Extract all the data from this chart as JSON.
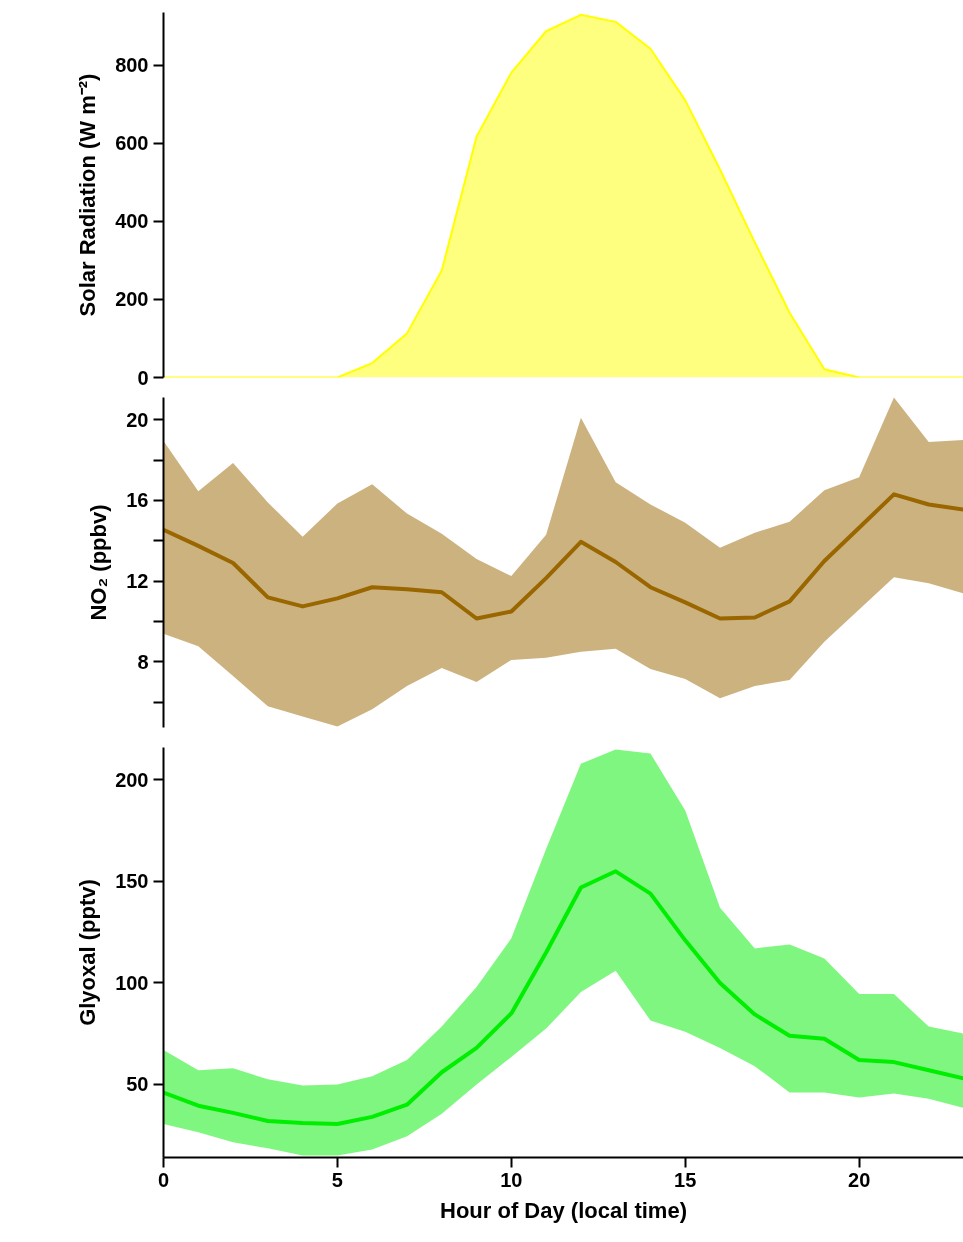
{
  "chart_data": [
    {
      "type": "area",
      "ylabel": "Solar Radiation (W m⁻²)",
      "x": [
        0,
        1,
        2,
        3,
        4,
        5,
        6,
        7,
        8,
        9,
        10,
        11,
        12,
        13,
        14,
        15,
        16,
        17,
        18,
        19,
        20,
        21,
        22,
        23
      ],
      "ylim": [
        0,
        935
      ],
      "yticks": [
        0,
        200,
        400,
        600,
        800
      ],
      "tick_labels": "y",
      "grid": false,
      "series": [
        {
          "color": "#ffff00",
          "values": [
            0,
            0,
            0,
            0,
            0,
            0,
            37,
            113,
            274,
            617,
            781,
            887,
            929,
            911,
            842,
            710,
            533,
            346,
            166,
            21,
            0,
            0,
            0,
            0
          ]
        }
      ]
    },
    {
      "type": "line",
      "ylabel": "NO₂ (ppbv)",
      "x": [
        0,
        1,
        2,
        3,
        4,
        5,
        6,
        7,
        8,
        9,
        10,
        11,
        12,
        13,
        14,
        15,
        16,
        17,
        18,
        19,
        20,
        21,
        22,
        23
      ],
      "ylim": [
        4.75,
        21.1
      ],
      "yticks": [
        {
          "value": 6,
          "label": null
        },
        8,
        {
          "value": 10,
          "label": null
        },
        12,
        {
          "value": 14,
          "label": null
        },
        16,
        {
          "value": 18,
          "label": null
        },
        20
      ],
      "tick_labels": "y",
      "grid": false,
      "series": [
        {
          "color": "#996600",
          "values": [
            14.55,
            13.75,
            12.9,
            11.2,
            10.75,
            11.15,
            11.7,
            11.6,
            11.45,
            10.15,
            10.5,
            12.15,
            13.95,
            12.95,
            11.7,
            10.95,
            10.15,
            10.2,
            11.0,
            13.0,
            14.65,
            16.3,
            15.8,
            15.55
          ],
          "lower": [
            9.4,
            8.78,
            7.3,
            5.8,
            5.3,
            4.8,
            5.65,
            6.8,
            7.7,
            7.0,
            8.1,
            8.2,
            8.5,
            8.65,
            7.65,
            7.15,
            6.2,
            6.8,
            7.1,
            9.0,
            10.6,
            12.2,
            11.9,
            11.4
          ],
          "upper": [
            18.95,
            16.45,
            17.85,
            15.9,
            14.2,
            15.85,
            16.8,
            15.35,
            14.35,
            13.1,
            12.25,
            14.3,
            20.1,
            16.9,
            15.8,
            14.9,
            13.65,
            14.4,
            14.95,
            16.5,
            17.15,
            21.1,
            18.9,
            19.0
          ]
        }
      ]
    },
    {
      "type": "line",
      "ylabel": "Glyoxal (pptv)",
      "xlabel": "Hour of Day (local time)",
      "x": [
        0,
        1,
        2,
        3,
        4,
        5,
        6,
        7,
        8,
        9,
        10,
        11,
        12,
        13,
        14,
        15,
        16,
        17,
        18,
        19,
        20,
        21,
        22,
        23
      ],
      "xlim": [
        0,
        23
      ],
      "xticks": [
        0,
        5,
        10,
        15,
        20
      ],
      "ylim": [
        14,
        216
      ],
      "yticks": [
        50,
        100,
        150,
        200
      ],
      "grid": false,
      "series": [
        {
          "color": "#00ee00",
          "values": [
            46,
            39.5,
            36,
            32,
            31,
            30.5,
            34,
            40,
            56,
            68,
            85,
            115,
            147,
            155,
            144,
            121,
            100,
            84.5,
            74,
            72.5,
            62,
            61,
            57,
            53
          ],
          "lower": [
            30.5,
            26.5,
            21.5,
            18.5,
            15,
            15,
            18,
            24.5,
            35.5,
            50,
            63.5,
            77.5,
            95.5,
            106,
            81.5,
            76,
            68,
            59,
            46,
            46,
            43.5,
            45.5,
            43,
            38.5
          ],
          "upper": [
            67,
            57,
            58,
            52.5,
            49.5,
            50,
            54,
            62,
            78.5,
            98,
            122,
            166,
            208,
            215,
            213,
            185,
            137,
            117,
            119,
            112,
            94.5,
            94.5,
            78.5,
            75
          ]
        }
      ]
    }
  ]
}
